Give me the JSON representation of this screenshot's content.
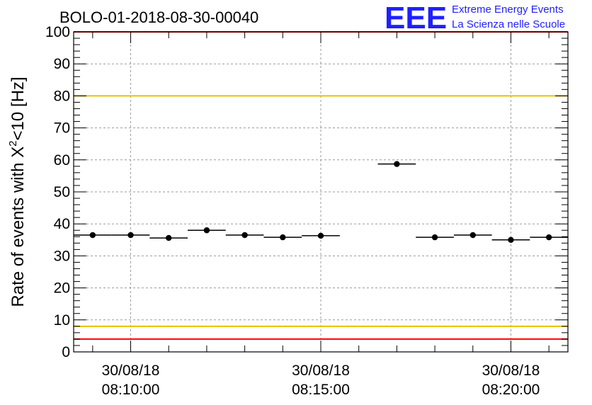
{
  "chart_data": {
    "type": "scatter",
    "title": "BOLO-01-2018-08-30-00040",
    "ylabel": "Rate of events with Χ",
    "ylabel_sup": "2",
    "ylabel_tail": "<10 [Hz]",
    "ylim": [
      0,
      100
    ],
    "y_ticks": [
      "0",
      "10",
      "20",
      "30",
      "40",
      "50",
      "60",
      "70",
      "80",
      "90",
      "100"
    ],
    "xlim": [
      "08:08:30",
      "08:21:30"
    ],
    "x_ticks": [
      {
        "time": "08:10:00",
        "date": "30/08/18",
        "clock": "08:10:00"
      },
      {
        "time": "08:15:00",
        "date": "30/08/18",
        "clock": "08:15:00"
      },
      {
        "time": "08:20:00",
        "date": "30/08/18",
        "clock": "08:20:00"
      }
    ],
    "grid": true,
    "reference_lines": [
      {
        "value": 100,
        "color": "#ff0000"
      },
      {
        "value": 80,
        "color": "#e8c000"
      },
      {
        "value": 8,
        "color": "#e8c000"
      },
      {
        "value": 4,
        "color": "#ff0000"
      }
    ],
    "points": [
      {
        "x": "08:09:00",
        "y": 36.5
      },
      {
        "x": "08:10:00",
        "y": 36.5
      },
      {
        "x": "08:11:00",
        "y": 35.6
      },
      {
        "x": "08:12:00",
        "y": 38.0
      },
      {
        "x": "08:13:00",
        "y": 36.5
      },
      {
        "x": "08:14:00",
        "y": 35.8
      },
      {
        "x": "08:15:00",
        "y": 36.3
      },
      {
        "x": "08:17:00",
        "y": 58.7
      },
      {
        "x": "08:18:00",
        "y": 35.8
      },
      {
        "x": "08:19:00",
        "y": 36.5
      },
      {
        "x": "08:20:00",
        "y": 35.0
      },
      {
        "x": "08:21:00",
        "y": 35.8
      }
    ],
    "bin_width_minutes": 1,
    "marker_color": "#000000"
  },
  "logo": {
    "mark": "EEE",
    "line1": "Extreme Energy Events",
    "line2": "La Scienza nelle Scuole",
    "color": "#1f1fff"
  }
}
